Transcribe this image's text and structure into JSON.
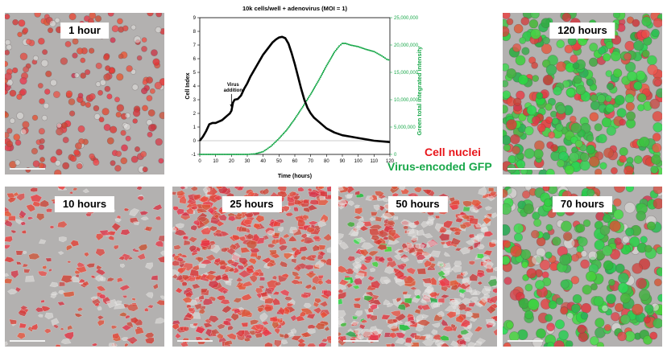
{
  "panels": [
    {
      "id": "p1h",
      "label": "1 hour",
      "style": "round",
      "red": 0.85,
      "green": 0.0
    },
    {
      "id": "p120h",
      "label": "120 hours",
      "style": "mixed",
      "red": 0.55,
      "green": 0.65
    },
    {
      "id": "p10h",
      "label": "10 hours",
      "style": "spread",
      "red": 0.75,
      "green": 0.0
    },
    {
      "id": "p25h",
      "label": "25 hours",
      "style": "dense",
      "red": 0.9,
      "green": 0.0
    },
    {
      "id": "p50h",
      "label": "50 hours",
      "style": "dense",
      "red": 0.5,
      "green": 0.05
    },
    {
      "id": "p70h",
      "label": "70 hours",
      "style": "infected",
      "red": 0.35,
      "green": 0.55
    }
  ],
  "legend": {
    "nuclei": "Cell nuclei",
    "gfp": "Virus-encoded GFP",
    "nuclei_color": "#e8161b",
    "gfp_color": "#19a84a"
  },
  "chart_data": {
    "type": "line",
    "title": "10k cells/well + adenovirus (MOI = 1)",
    "xlabel": "Time (hours)",
    "ylabel": "Cell Index",
    "y2label": "Green total integrated intensity",
    "xlim": [
      0,
      120
    ],
    "xticks": [
      0,
      10,
      20,
      30,
      40,
      50,
      60,
      70,
      80,
      90,
      100,
      110,
      120
    ],
    "ylim": [
      -1,
      9
    ],
    "yticks": [
      -1,
      0,
      1,
      2,
      3,
      4,
      5,
      6,
      7,
      8,
      9
    ],
    "y2lim": [
      0,
      25000000
    ],
    "y2ticks": [
      0,
      5000000,
      10000000,
      15000000,
      20000000,
      25000000
    ],
    "y2ticklabels": [
      "0",
      "5,000,000",
      "10,000,000",
      "15,000,000",
      "20,000,000",
      "25,000,000"
    ],
    "annotation": {
      "text_line1": "Virus",
      "text_line2": "addition",
      "x": 20,
      "y": 2.3
    },
    "series": [
      {
        "name": "Cell Index",
        "axis": "left",
        "color": "#000000",
        "x": [
          0,
          2,
          4,
          6,
          8,
          10,
          12,
          14,
          16,
          18,
          19,
          20,
          21,
          22,
          24,
          26,
          28,
          30,
          32,
          34,
          36,
          38,
          40,
          42,
          44,
          46,
          48,
          50,
          52,
          54,
          56,
          58,
          60,
          62,
          64,
          66,
          68,
          70,
          72,
          75,
          80,
          85,
          90,
          95,
          100,
          105,
          110,
          115,
          120
        ],
        "y": [
          0,
          0.3,
          0.7,
          1.2,
          1.3,
          1.3,
          1.4,
          1.5,
          1.7,
          1.9,
          2.0,
          2.2,
          2.8,
          3.0,
          3.05,
          3.3,
          3.8,
          4.2,
          4.7,
          5.1,
          5.5,
          5.9,
          6.3,
          6.6,
          6.9,
          7.2,
          7.4,
          7.55,
          7.6,
          7.5,
          7.1,
          6.4,
          5.6,
          4.7,
          3.8,
          3.0,
          2.4,
          2.0,
          1.7,
          1.4,
          0.9,
          0.6,
          0.4,
          0.3,
          0.2,
          0.1,
          0.0,
          -0.05,
          -0.1
        ]
      },
      {
        "name": "Green total integrated intensity",
        "axis": "right",
        "color": "#19a84a",
        "x": [
          0,
          10,
          20,
          30,
          35,
          40,
          45,
          50,
          55,
          60,
          65,
          70,
          75,
          80,
          85,
          88,
          90,
          92,
          95,
          100,
          105,
          110,
          115,
          118,
          120
        ],
        "y": [
          0,
          0,
          0,
          0,
          100000,
          500000,
          1500000,
          2900000,
          4500000,
          6500000,
          8700000,
          11000000,
          13500000,
          16200000,
          18700000,
          19800000,
          20300000,
          20300000,
          20000000,
          19700000,
          19200000,
          18800000,
          18000000,
          17400000,
          17200000
        ]
      }
    ]
  }
}
